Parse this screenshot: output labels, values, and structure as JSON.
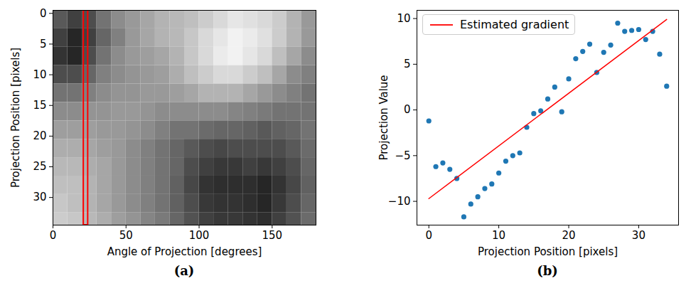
{
  "chart_data": [
    {
      "type": "heatmap",
      "panel_label": "(a)",
      "x_label": "Angle of Projection [degrees]",
      "y_label": "Projection Position [pixels]",
      "xlim": [
        0,
        180
      ],
      "ylim": [
        34.5,
        -0.5
      ],
      "xticks": [
        0,
        50,
        100,
        150
      ],
      "yticks": [
        0,
        5,
        10,
        15,
        20,
        25,
        30
      ],
      "zlim": [
        0,
        1
      ],
      "x_bins": [
        0,
        10,
        20,
        30,
        40,
        50,
        60,
        70,
        80,
        90,
        100,
        110,
        120,
        130,
        140,
        150,
        160,
        170,
        180
      ],
      "y_bins": [
        -0.5,
        2.5,
        5.5,
        8.5,
        11.5,
        14.5,
        17.5,
        20.5,
        23.5,
        26.5,
        29.5,
        32.5,
        34.5
      ],
      "cells": [
        [
          0.35,
          0.25,
          0.3,
          0.45,
          0.55,
          0.6,
          0.65,
          0.7,
          0.72,
          0.75,
          0.8,
          0.85,
          0.9,
          0.88,
          0.85,
          0.8,
          0.7,
          0.6
        ],
        [
          0.25,
          0.15,
          0.25,
          0.4,
          0.5,
          0.6,
          0.65,
          0.7,
          0.72,
          0.78,
          0.85,
          0.9,
          0.95,
          0.92,
          0.88,
          0.8,
          0.7,
          0.6
        ],
        [
          0.2,
          0.15,
          0.3,
          0.45,
          0.55,
          0.6,
          0.62,
          0.65,
          0.7,
          0.78,
          0.85,
          0.92,
          0.95,
          0.9,
          0.85,
          0.75,
          0.65,
          0.55
        ],
        [
          0.3,
          0.3,
          0.4,
          0.5,
          0.55,
          0.58,
          0.6,
          0.62,
          0.68,
          0.75,
          0.8,
          0.85,
          0.85,
          0.8,
          0.75,
          0.65,
          0.55,
          0.5
        ],
        [
          0.45,
          0.45,
          0.5,
          0.55,
          0.58,
          0.58,
          0.6,
          0.6,
          0.62,
          0.65,
          0.7,
          0.7,
          0.7,
          0.65,
          0.6,
          0.55,
          0.5,
          0.45
        ],
        [
          0.55,
          0.55,
          0.58,
          0.58,
          0.6,
          0.6,
          0.58,
          0.55,
          0.55,
          0.55,
          0.55,
          0.55,
          0.52,
          0.5,
          0.48,
          0.45,
          0.45,
          0.45
        ],
        [
          0.62,
          0.62,
          0.62,
          0.6,
          0.6,
          0.58,
          0.55,
          0.5,
          0.45,
          0.45,
          0.42,
          0.4,
          0.4,
          0.38,
          0.35,
          0.38,
          0.4,
          0.45
        ],
        [
          0.68,
          0.68,
          0.65,
          0.62,
          0.6,
          0.55,
          0.5,
          0.45,
          0.4,
          0.35,
          0.3,
          0.28,
          0.3,
          0.3,
          0.3,
          0.3,
          0.35,
          0.42
        ],
        [
          0.72,
          0.72,
          0.68,
          0.65,
          0.6,
          0.55,
          0.5,
          0.45,
          0.4,
          0.3,
          0.25,
          0.22,
          0.22,
          0.25,
          0.22,
          0.25,
          0.3,
          0.4
        ],
        [
          0.75,
          0.75,
          0.7,
          0.65,
          0.6,
          0.55,
          0.5,
          0.45,
          0.38,
          0.28,
          0.2,
          0.18,
          0.18,
          0.18,
          0.15,
          0.2,
          0.28,
          0.38
        ],
        [
          0.78,
          0.75,
          0.7,
          0.65,
          0.6,
          0.55,
          0.5,
          0.45,
          0.38,
          0.3,
          0.22,
          0.2,
          0.2,
          0.18,
          0.15,
          0.22,
          0.3,
          0.4
        ],
        [
          0.8,
          0.78,
          0.72,
          0.68,
          0.62,
          0.58,
          0.52,
          0.48,
          0.4,
          0.32,
          0.25,
          0.22,
          0.22,
          0.2,
          0.18,
          0.25,
          0.32,
          0.42
        ]
      ],
      "highlight": {
        "x": [
          21,
          24
        ],
        "color": "#ff0000"
      }
    },
    {
      "type": "scatter",
      "panel_label": "(b)",
      "x_label": "Projection Position [pixels]",
      "y_label": "Projection Value",
      "xlim": [
        -1.7,
        35.7
      ],
      "ylim": [
        -12.6,
        10.9
      ],
      "xticks": [
        0,
        10,
        20,
        30
      ],
      "yticks": [
        -10,
        -5,
        0,
        5,
        10
      ],
      "legend": "upper left",
      "series": [
        {
          "type": "scatter",
          "marker": "circle",
          "color": "#1f77b4",
          "x": [
            0,
            1,
            2,
            3,
            4,
            5,
            6,
            7,
            8,
            9,
            10,
            11,
            12,
            13,
            14,
            15,
            16,
            17,
            18,
            19,
            20,
            21,
            22,
            23,
            24,
            25,
            26,
            27,
            28,
            29,
            30,
            31,
            32,
            33,
            34
          ],
          "values": [
            -1.2,
            -6.2,
            -5.8,
            -6.5,
            -7.5,
            -11.7,
            -10.3,
            -9.5,
            -8.6,
            -8.1,
            -6.9,
            -5.6,
            -5.0,
            -4.7,
            -1.9,
            -0.4,
            -0.1,
            1.2,
            2.5,
            -0.2,
            3.4,
            5.6,
            6.4,
            7.2,
            4.1,
            6.3,
            7.1,
            9.5,
            8.6,
            8.7,
            8.8,
            7.7,
            8.6,
            6.1,
            2.6
          ]
        },
        {
          "type": "line",
          "name": "Estimated gradient",
          "color": "#ff0000",
          "line_style": "solid",
          "x": [
            0,
            34
          ],
          "values": [
            -9.7,
            9.9
          ]
        }
      ]
    }
  ]
}
